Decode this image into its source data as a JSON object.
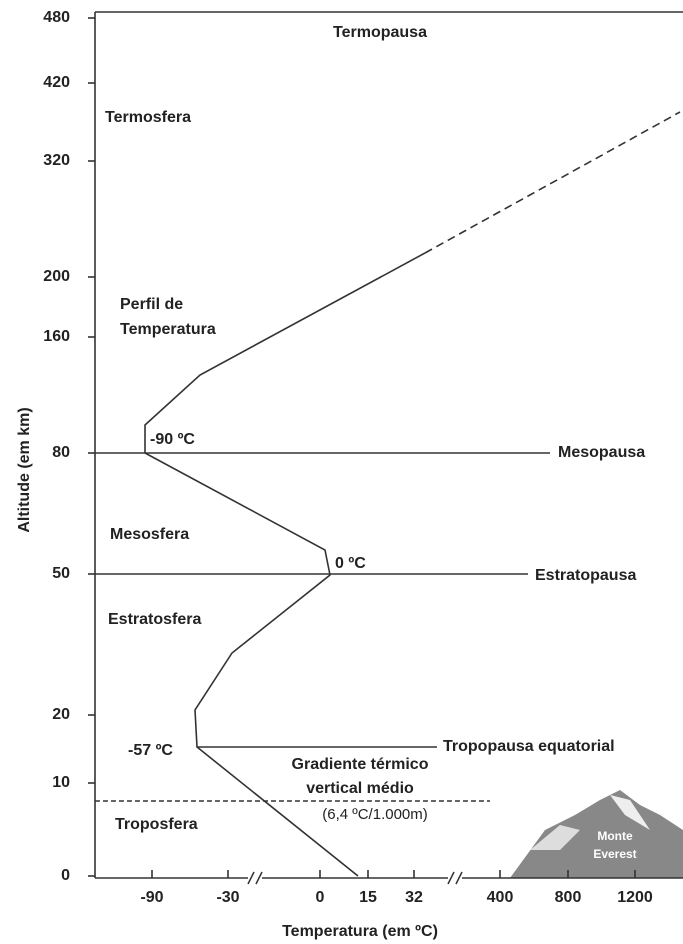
{
  "title": null,
  "y_axis": {
    "label": "Altitude (em km)",
    "ticks": [
      "480",
      "420",
      "320",
      "200",
      "160",
      "80",
      "50",
      "20",
      "10",
      "0"
    ]
  },
  "x_axis": {
    "label": "Temperatura (em ºC)",
    "ticks": [
      "-90",
      "-30",
      "0",
      "15",
      "32",
      "400",
      "800",
      "1200"
    ]
  },
  "layers": {
    "termopausa": "Termopausa",
    "termosfera": "Termosfera",
    "perfil": [
      "Perfil de",
      "Temperatura"
    ],
    "mesosfera": "Mesosfera",
    "estratosfera": "Estratosfera",
    "troposfera": "Troposfera"
  },
  "boundaries": {
    "mesopausa": "Mesopausa",
    "estratopausa": "Estratopausa",
    "tropopausa": "Tropopausa equatorial"
  },
  "temperatures": {
    "mesopausa": "-90 ºC",
    "estratopausa": "0 ºC",
    "tropopausa": "-57 ºC"
  },
  "gradient": {
    "lines": [
      "Gradiente térmico",
      "vertical médio"
    ],
    "value": "(6,4 ºC/1.000m)"
  },
  "mountain": [
    "Monte",
    "Everest"
  ]
}
